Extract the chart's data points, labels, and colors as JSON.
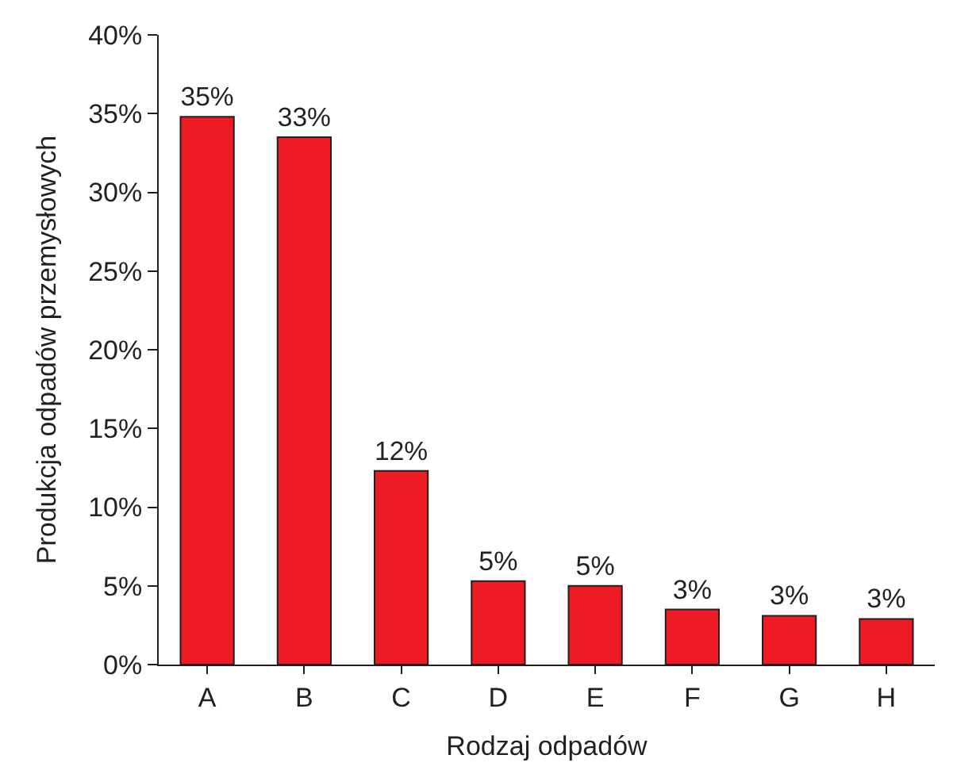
{
  "chart_data": {
    "type": "bar",
    "xlabel": "Rodzaj odpadów",
    "ylabel": "Produkcja odpadów przemysłowych",
    "categories": [
      "A",
      "B",
      "C",
      "D",
      "E",
      "F",
      "G",
      "H"
    ],
    "values": [
      34.8,
      33.5,
      12.3,
      5.3,
      5.0,
      3.5,
      3.1,
      2.9
    ],
    "value_labels": [
      "35%",
      "33%",
      "12%",
      "5%",
      "5%",
      "3%",
      "3%",
      "3%"
    ],
    "color": "#ed1c24",
    "ylim": [
      0,
      40
    ],
    "yticks": [
      {
        "value": 0,
        "label": "0%"
      },
      {
        "value": 5,
        "label": "5%"
      },
      {
        "value": 10,
        "label": "10%"
      },
      {
        "value": 15,
        "label": "15%"
      },
      {
        "value": 20,
        "label": "20%"
      },
      {
        "value": 25,
        "label": "25%"
      },
      {
        "value": 30,
        "label": "30%"
      },
      {
        "value": 35,
        "label": "35%"
      },
      {
        "value": 40,
        "label": "40%"
      }
    ],
    "legend": false
  }
}
